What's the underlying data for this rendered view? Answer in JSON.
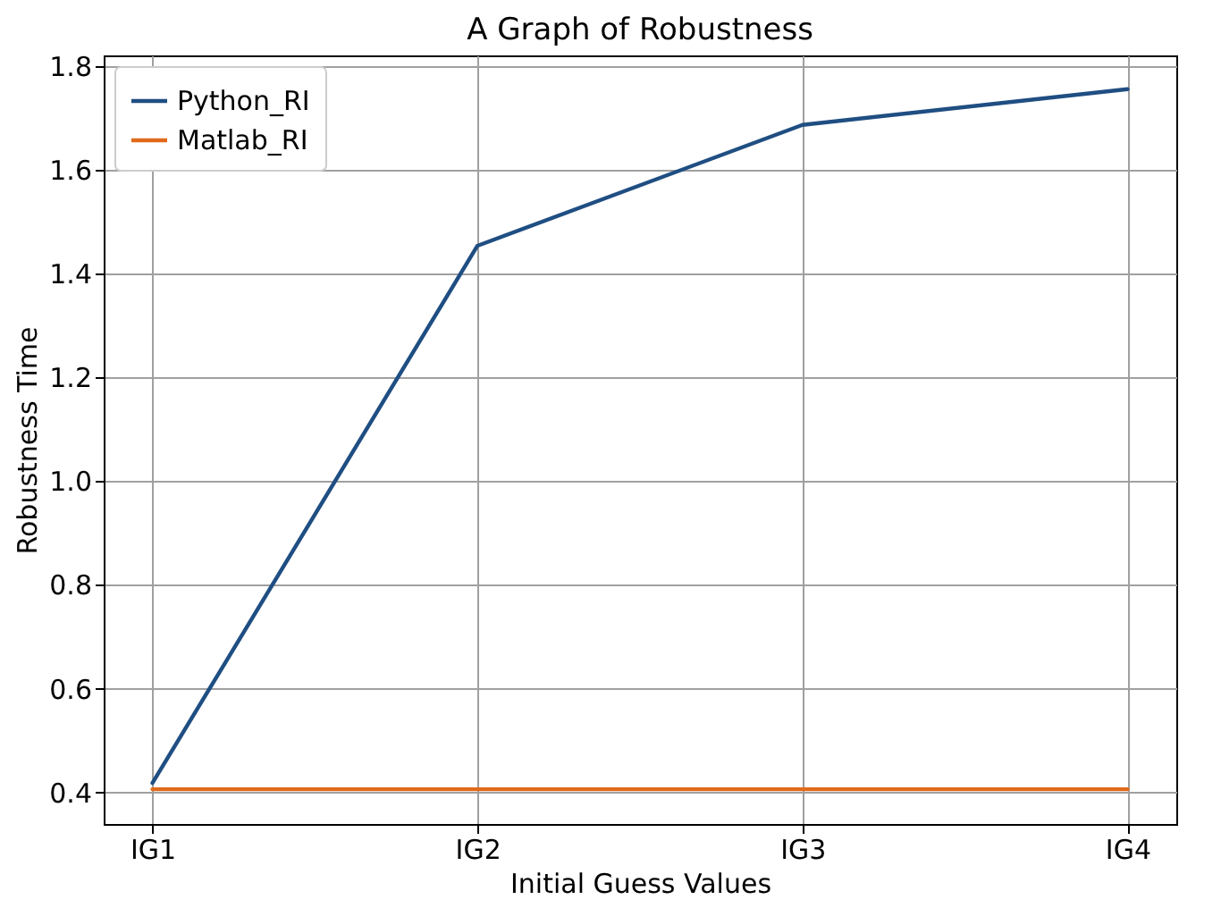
{
  "chart_data": {
    "type": "line",
    "title": "A Graph of Robustness",
    "xlabel": "Initial Guess Values",
    "ylabel": "Robustness Time",
    "categories": [
      "IG1",
      "IG2",
      "IG3",
      "IG4"
    ],
    "series": [
      {
        "name": "Python_RI",
        "color": "#1f4e82",
        "values": [
          0.418,
          1.454,
          1.687,
          1.756
        ]
      },
      {
        "name": "Matlab_RI",
        "color": "#e06a1b",
        "values": [
          0.406,
          0.406,
          0.406,
          0.406
        ]
      }
    ],
    "ylim": [
      0.339,
      1.821
    ],
    "yticks": [
      0.4,
      0.6,
      0.8,
      {
        "value": 1,
        "label": "1.0"
      },
      1.2,
      1.4,
      1.6,
      1.8
    ],
    "grid": true,
    "legend": "top left",
    "line_style": "solid"
  }
}
